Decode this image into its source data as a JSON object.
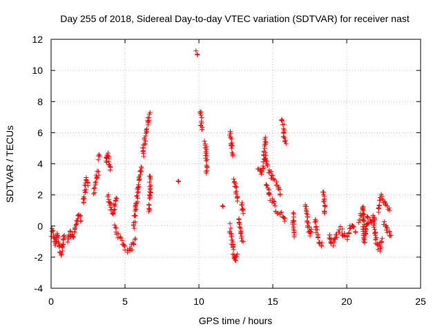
{
  "chart_data": {
    "type": "scatter",
    "title": "Day 255 of 2018, Sidereal Day-to-day VTEC variation (SDTVAR) for receiver nast",
    "xlabel": "GPS time / hours",
    "ylabel": "SDTVAR / TECUs",
    "xlim": [
      0,
      25
    ],
    "ylim": [
      -4,
      12
    ],
    "xticks": [
      0,
      5,
      10,
      15,
      20,
      25
    ],
    "yticks": [
      -4,
      -2,
      0,
      2,
      4,
      6,
      8,
      10,
      12
    ],
    "grid": true,
    "marker": "plus",
    "marker_color": "#ff0000",
    "series": [
      {
        "name": "SDTVAR",
        "segments": [
          [
            [
              0.0,
              -0.6
            ],
            [
              0.1,
              -0.3
            ],
            [
              0.2,
              -0.8
            ],
            [
              0.3,
              -1.2
            ],
            [
              0.4,
              -0.5
            ],
            [
              0.5,
              -1.0
            ],
            [
              0.6,
              -1.5
            ],
            [
              0.7,
              -1.8
            ],
            [
              0.8,
              -1.2
            ],
            [
              0.9,
              -0.6
            ]
          ],
          [
            [
              1.1,
              -1.0
            ],
            [
              1.3,
              -0.4
            ],
            [
              1.5,
              -0.8
            ],
            [
              1.7,
              0.2
            ],
            [
              1.9,
              0.8
            ],
            [
              2.0,
              0.3
            ]
          ],
          [
            [
              2.2,
              1.5
            ],
            [
              2.3,
              2.3
            ],
            [
              2.4,
              3.0
            ],
            [
              2.5,
              2.6
            ]
          ],
          [
            [
              2.9,
              2.2
            ],
            [
              3.0,
              2.8
            ],
            [
              3.1,
              3.3
            ],
            [
              3.2,
              3.5
            ]
          ],
          [
            [
              3.2,
              4.3
            ],
            [
              3.3,
              4.5
            ]
          ],
          [
            [
              3.7,
              4.0
            ],
            [
              3.8,
              4.6
            ],
            [
              3.9,
              4.3
            ],
            [
              4.0,
              3.6
            ]
          ],
          [
            [
              3.8,
              2.0
            ],
            [
              4.0,
              1.5
            ],
            [
              4.1,
              1.0
            ],
            [
              4.2,
              0.8
            ],
            [
              4.3,
              1.2
            ],
            [
              4.4,
              1.8
            ]
          ],
          [
            [
              4.3,
              0.0
            ],
            [
              4.5,
              -0.5
            ],
            [
              4.7,
              -0.9
            ],
            [
              4.9,
              -1.2
            ],
            [
              5.1,
              -1.5
            ],
            [
              5.3,
              -1.6
            ],
            [
              5.5,
              -1.3
            ],
            [
              5.7,
              -0.8
            ]
          ],
          [
            [
              5.6,
              0.0
            ],
            [
              5.7,
              0.8
            ],
            [
              5.8,
              1.7
            ],
            [
              5.9,
              2.5
            ],
            [
              6.0,
              3.2
            ],
            [
              6.1,
              3.8
            ]
          ],
          [
            [
              6.2,
              4.5
            ],
            [
              6.3,
              5.3
            ],
            [
              6.4,
              6.0
            ],
            [
              6.5,
              6.5
            ],
            [
              6.6,
              7.0
            ],
            [
              6.7,
              7.3
            ]
          ],
          [
            [
              6.6,
              1.0
            ],
            [
              6.7,
              1.8
            ],
            [
              6.7,
              3.2
            ]
          ],
          [
            [
              8.6,
              2.9
            ]
          ],
          [
            [
              9.85,
              11.2
            ],
            [
              9.9,
              11.0
            ]
          ],
          [
            [
              10.1,
              7.3
            ],
            [
              10.15,
              6.7
            ],
            [
              10.2,
              6.2
            ]
          ],
          [
            [
              10.4,
              5.4
            ],
            [
              10.5,
              4.8
            ],
            [
              10.5,
              4.3
            ],
            [
              10.5,
              3.4
            ]
          ],
          [
            [
              11.6,
              1.3
            ]
          ],
          [
            [
              12.1,
              6.0
            ],
            [
              12.2,
              5.2
            ],
            [
              12.3,
              4.5
            ]
          ],
          [
            [
              12.4,
              3.0
            ],
            [
              12.5,
              2.3
            ],
            [
              12.6,
              1.6
            ]
          ],
          [
            [
              12.1,
              0.0
            ],
            [
              12.2,
              -0.8
            ],
            [
              12.3,
              -1.5
            ],
            [
              12.4,
              -2.0
            ],
            [
              12.5,
              -2.2
            ],
            [
              12.6,
              -1.8
            ]
          ],
          [
            [
              12.7,
              0.5
            ],
            [
              12.8,
              -0.2
            ],
            [
              12.9,
              -0.6
            ],
            [
              13.0,
              -1.0
            ]
          ],
          [
            [
              12.9,
              1.5
            ],
            [
              13.0,
              0.8
            ]
          ],
          [
            [
              14.0,
              3.8
            ],
            [
              14.2,
              3.4
            ],
            [
              14.4,
              4.0
            ],
            [
              14.5,
              5.7
            ]
          ],
          [
            [
              14.5,
              4.5
            ],
            [
              14.6,
              4.0
            ],
            [
              14.8,
              3.5
            ],
            [
              15.0,
              3.0
            ],
            [
              15.2,
              2.8
            ],
            [
              15.4,
              2.5
            ],
            [
              15.5,
              2.0
            ]
          ],
          [
            [
              14.6,
              2.8
            ],
            [
              14.8,
              2.0
            ],
            [
              15.0,
              1.5
            ],
            [
              15.2,
              1.0
            ],
            [
              15.5,
              0.8
            ],
            [
              15.7,
              0.6
            ],
            [
              15.8,
              0.3
            ]
          ],
          [
            [
              15.6,
              6.9
            ],
            [
              15.7,
              6.5
            ],
            [
              15.75,
              6.0
            ],
            [
              15.8,
              5.5
            ],
            [
              15.9,
              5.3
            ]
          ],
          [
            [
              16.4,
              0.8
            ],
            [
              16.4,
              0.0
            ],
            [
              16.45,
              -0.7
            ]
          ],
          [
            [
              17.2,
              1.4
            ],
            [
              17.3,
              0.8
            ],
            [
              17.4,
              0.0
            ],
            [
              17.5,
              -0.6
            ],
            [
              17.6,
              -0.2
            ]
          ],
          [
            [
              17.9,
              0.4
            ],
            [
              18.0,
              -0.4
            ],
            [
              18.1,
              -0.9
            ],
            [
              18.2,
              -1.1
            ],
            [
              18.3,
              -1.3
            ]
          ],
          [
            [
              18.4,
              2.2
            ],
            [
              18.5,
              1.5
            ],
            [
              18.5,
              0.8
            ]
          ],
          [
            [
              18.8,
              -0.6
            ],
            [
              19.0,
              -1.2
            ],
            [
              19.2,
              -0.8
            ],
            [
              19.4,
              -0.4
            ],
            [
              19.6,
              -0.2
            ],
            [
              19.8,
              -0.5
            ],
            [
              20.0,
              -0.8
            ],
            [
              20.2,
              -0.2
            ],
            [
              20.4,
              0.1
            ],
            [
              20.6,
              -0.4
            ]
          ],
          [
            [
              20.8,
              0.4
            ],
            [
              21.0,
              0.8
            ],
            [
              21.1,
              1.2
            ],
            [
              21.2,
              -1.0
            ],
            [
              21.4,
              0.5
            ],
            [
              21.6,
              0.2
            ],
            [
              21.8,
              0.6
            ],
            [
              22.0,
              -1.0
            ],
            [
              22.2,
              -1.5
            ],
            [
              22.4,
              -0.8
            ]
          ],
          [
            [
              22.1,
              1.0
            ],
            [
              22.2,
              1.6
            ],
            [
              22.3,
              1.9
            ],
            [
              22.5,
              1.6
            ],
            [
              22.7,
              1.2
            ],
            [
              22.9,
              1.0
            ]
          ],
          [
            [
              22.5,
              0.3
            ],
            [
              22.7,
              -0.2
            ],
            [
              22.9,
              -0.5
            ],
            [
              23.0,
              -0.6
            ]
          ]
        ]
      }
    ]
  }
}
